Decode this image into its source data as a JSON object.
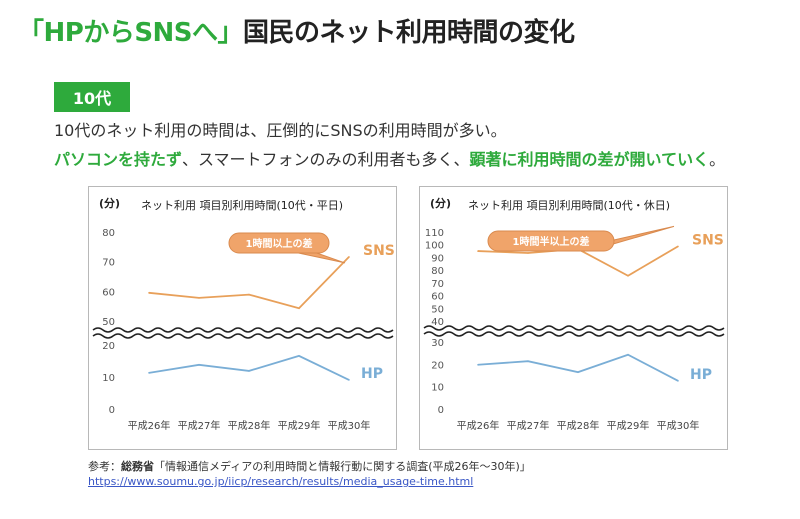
{
  "title": {
    "accent": "「HPからSNSへ」",
    "rest": "国民のネット利用時間の変化"
  },
  "badge": "10代",
  "description": {
    "line1": "10代のネット利用の時間は、圧倒的にSNSの利用時間が多い。",
    "line2_part1": "パソコンを持たず",
    "line2_part2": "、スマートフォンのみの利用者も多く、",
    "line2_part3": "顕著に利用時間の差が開いていく",
    "line2_part4": "。"
  },
  "colors": {
    "accent": "#2eaa3c",
    "sns": "#e8a05a",
    "hp": "#7aaed6",
    "callout": "#f0a46a"
  },
  "chart_data": [
    {
      "type": "line",
      "title": "ネット利用 項目別利用時間(10代・平日)",
      "unit": "(分)",
      "categories": [
        "平成26年",
        "平成27年",
        "平成28年",
        "平成29年",
        "平成30年"
      ],
      "series": [
        {
          "name": "SNS",
          "values": [
            59.5,
            57.8,
            58.9,
            54.3,
            71.6
          ]
        },
        {
          "name": "HP",
          "values": [
            11.3,
            13.8,
            11.9,
            16.6,
            9.1
          ]
        }
      ],
      "yticks_upper": [
        50,
        60,
        70,
        80
      ],
      "yticks_lower": [
        0,
        10,
        20
      ],
      "ylim_upper": [
        50,
        80
      ],
      "ylim_lower": [
        0,
        20
      ],
      "axis_break": true,
      "callout": "1時間以上の差",
      "grid": false
    },
    {
      "type": "line",
      "title": "ネット利用 項目別利用時間(10代・休日)",
      "unit": "(分)",
      "categories": [
        "平成26年",
        "平成27年",
        "平成28年",
        "平成29年",
        "平成30年"
      ],
      "series": [
        {
          "name": "SNS",
          "values": [
            95.0,
            93.5,
            96.6,
            75.6,
            98.7
          ]
        },
        {
          "name": "HP",
          "values": [
            19.8,
            21.4,
            16.5,
            24.3,
            12.6
          ]
        }
      ],
      "yticks_upper": [
        40,
        50,
        60,
        70,
        80,
        90,
        100,
        110
      ],
      "yticks_lower": [
        0,
        10,
        20,
        30
      ],
      "ylim_upper": [
        40,
        110
      ],
      "ylim_lower": [
        0,
        30
      ],
      "axis_break": true,
      "callout": "1時間半以上の差",
      "grid": false
    }
  ],
  "source": {
    "prefix": "参考：",
    "org": "総務省",
    "text": "「情報通信メディアの利用時間と情報行動に関する調査(平成26年～30年)」",
    "url": "https://www.soumu.go.jp/iicp/research/results/media_usage-time.html"
  }
}
